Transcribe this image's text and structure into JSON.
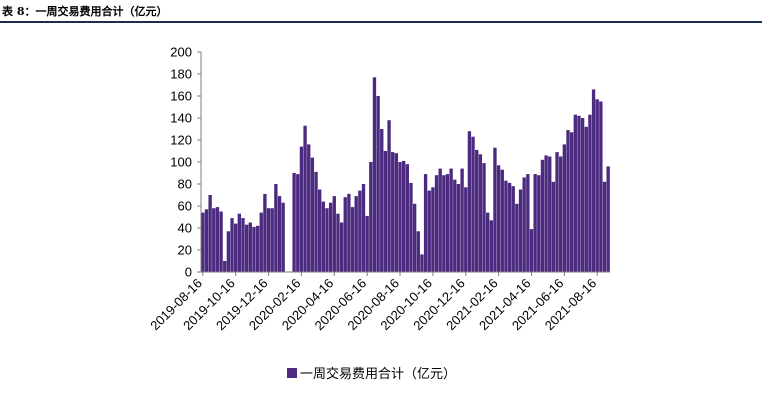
{
  "caption": "表 8：一周交易费用合计（亿元）",
  "colors": {
    "bar": "#4b2a7f",
    "axis": "#7f7f7f",
    "rule": "#1b2c54"
  },
  "chart_data": {
    "type": "bar",
    "ylim": [
      0,
      200
    ],
    "yticks": [
      0,
      20,
      40,
      60,
      80,
      100,
      120,
      140,
      160,
      180,
      200
    ],
    "xtick_labels": [
      "2019-08-16",
      "2019-10-16",
      "2019-12-16",
      "2020-02-16",
      "2020-04-16",
      "2020-06-16",
      "2020-08-16",
      "2020-10-16",
      "2020-12-16",
      "2021-02-16",
      "2021-04-16",
      "2021-06-16",
      "2021-08-16"
    ],
    "series": [
      {
        "name": "一周交易费用合计（亿元）",
        "values": [
          54,
          57,
          70,
          58,
          59,
          55,
          10,
          37,
          49,
          44,
          53,
          49,
          43,
          45,
          41,
          42,
          54,
          71,
          58,
          58,
          80,
          69,
          63,
          0,
          0,
          90,
          89,
          114,
          133,
          116,
          104,
          91,
          75,
          64,
          58,
          63,
          69,
          53,
          45,
          68,
          71,
          59,
          69,
          74,
          80,
          51,
          100,
          177,
          160,
          130,
          110,
          138,
          109,
          108,
          100,
          101,
          98,
          81,
          62,
          37,
          16,
          89,
          74,
          77,
          88,
          94,
          88,
          89,
          94,
          84,
          80,
          94,
          77,
          128,
          123,
          111,
          107,
          99,
          54,
          47,
          113,
          97,
          93,
          83,
          81,
          78,
          62,
          75,
          86,
          89,
          39,
          89,
          88,
          102,
          106,
          105,
          82,
          109,
          105,
          116,
          129,
          127,
          143,
          142,
          140,
          132,
          143,
          166,
          157,
          155,
          82,
          96
        ]
      }
    ],
    "legend_position": "bottom-center"
  }
}
